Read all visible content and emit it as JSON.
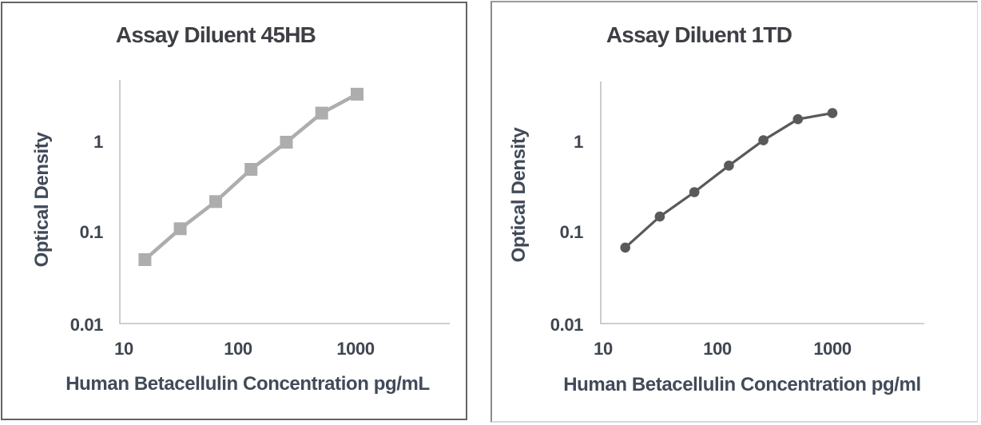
{
  "chart_data": [
    {
      "type": "line",
      "title": "Assay Diluent 45HB",
      "xlabel": "Human Betacellulin Concentration pg/mL",
      "ylabel": "Optical Density",
      "x_scale": "log",
      "y_scale": "log",
      "x": [
        15.6,
        31.2,
        62.5,
        125,
        250,
        500,
        1000
      ],
      "y": [
        0.05,
        0.11,
        0.22,
        0.5,
        1.0,
        2.1,
        3.4
      ],
      "x_tick_labels": [
        "10",
        "100",
        "1000"
      ],
      "y_tick_labels": [
        "1",
        "0.1",
        "0.01"
      ],
      "xlim": [
        10,
        6000
      ],
      "ylim": [
        0.01,
        5
      ],
      "grid": false,
      "legend": false,
      "marker": "square",
      "series_color": "#adadad",
      "axis_color": "#bfbfbf"
    },
    {
      "type": "line",
      "title": "Assay Diluent 1TD",
      "xlabel": "Human Betacellulin Concentration pg/ml",
      "ylabel": "Optical Density",
      "x_scale": "log",
      "y_scale": "log",
      "x": [
        15.6,
        31.2,
        62.5,
        125,
        250,
        500,
        1000
      ],
      "y": [
        0.068,
        0.15,
        0.28,
        0.55,
        1.05,
        1.8,
        2.1
      ],
      "x_tick_labels": [
        "10",
        "100",
        "1000"
      ],
      "y_tick_labels": [
        "1",
        "0.1",
        "0.01"
      ],
      "xlim": [
        10,
        6000
      ],
      "ylim": [
        0.01,
        5
      ],
      "grid": false,
      "legend": false,
      "marker": "circle",
      "series_color": "#595959",
      "axis_color": "#bfbfbf"
    }
  ]
}
